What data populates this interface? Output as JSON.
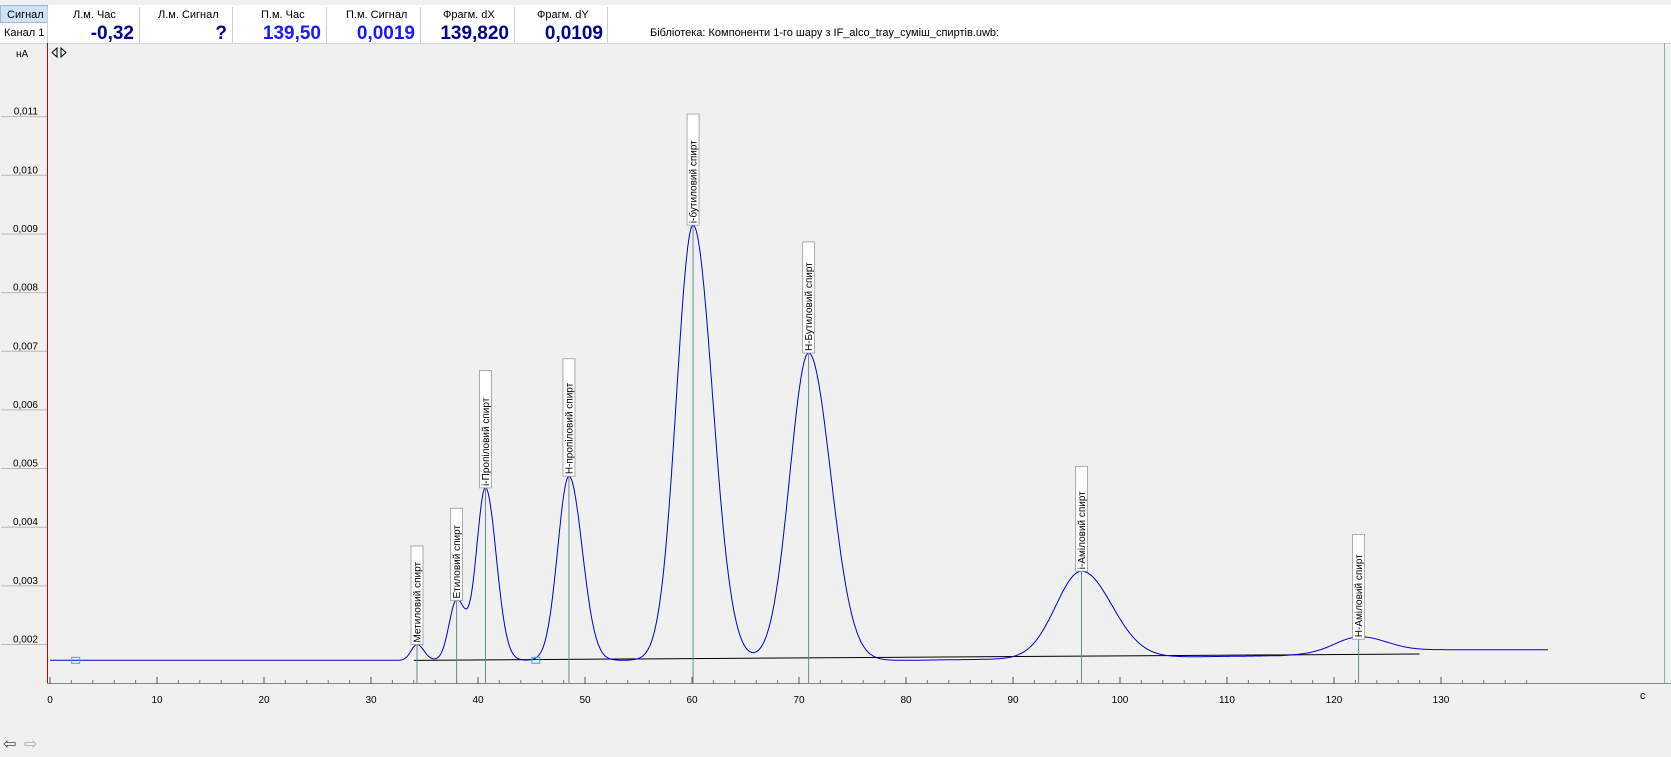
{
  "header": {
    "signal_tab": "Сигнал",
    "channel_label": "Канал 1",
    "columns": [
      {
        "label": "Л.м. Час",
        "value": "-0,32"
      },
      {
        "label": "Л.м. Сигнал",
        "value": "?"
      },
      {
        "label": "П.м. Час",
        "value": "139,50"
      },
      {
        "label": "П.м. Сигнал",
        "value": "0,0019"
      },
      {
        "label": "Фрагм. dX",
        "value": "139,820"
      },
      {
        "label": "Фрагм. dY",
        "value": "0,0109"
      }
    ],
    "library": "Бібліотека: Компоненти 1-го шару з IF_alco_tray_суміш_спиртів.uwb:"
  },
  "icons": {
    "cursor_arrows": "left-right-triangle-icon",
    "nav_back": "back-arrow-icon",
    "nav_forward": "forward-arrow-icon"
  },
  "chart_data": {
    "type": "line",
    "ylabel": "нА",
    "xlabel": "с",
    "xlim": [
      0,
      140
    ],
    "ylim": [
      0.0017,
      0.0118
    ],
    "x_ticks": [
      0,
      10,
      20,
      30,
      40,
      50,
      60,
      70,
      80,
      90,
      100,
      110,
      120,
      130
    ],
    "y_ticks": [
      0.002,
      0.003,
      0.004,
      0.005,
      0.006,
      0.007,
      0.008,
      0.009,
      0.01,
      0.011
    ],
    "y_tick_labels": [
      "0,002",
      "0,003",
      "0,004",
      "0,005",
      "0,006",
      "0,007",
      "0,008",
      "0,009",
      "0,010",
      "0,011"
    ],
    "baseline_level": 0.00173,
    "colors": {
      "signal": "#0000cc",
      "baseline": "#000000",
      "axis_left": "#cc0000",
      "marker": "#5f8f8f"
    },
    "peaks": [
      {
        "name": "Метиловий спирт",
        "x": 34.3,
        "y": 0.002,
        "width": 0.55
      },
      {
        "name": "Етиловий спирт",
        "x": 38.0,
        "y": 0.00275,
        "width": 0.7
      },
      {
        "name": "і-Пропіловий спирт",
        "x": 40.7,
        "y": 0.00467,
        "width": 0.85
      },
      {
        "name": "Н-пропіловий спирт",
        "x": 48.5,
        "y": 0.00487,
        "width": 1.05
      },
      {
        "name": "і-бутиловий спирт",
        "x": 60.1,
        "y": 0.00915,
        "width": 1.55
      },
      {
        "name": "Н-Бутиловий спирт",
        "x": 70.9,
        "y": 0.00697,
        "width": 1.75
      },
      {
        "name": "і-Аміловий спирт",
        "x": 96.4,
        "y": 0.00325,
        "width": 2.4
      },
      {
        "name": "Н-Аміловий спирт",
        "x": 122.3,
        "y": 0.00209,
        "width": 2.2
      }
    ],
    "tail_level": 0.00191,
    "markers": [
      {
        "x": 2.4
      },
      {
        "x": 45.4
      }
    ]
  }
}
